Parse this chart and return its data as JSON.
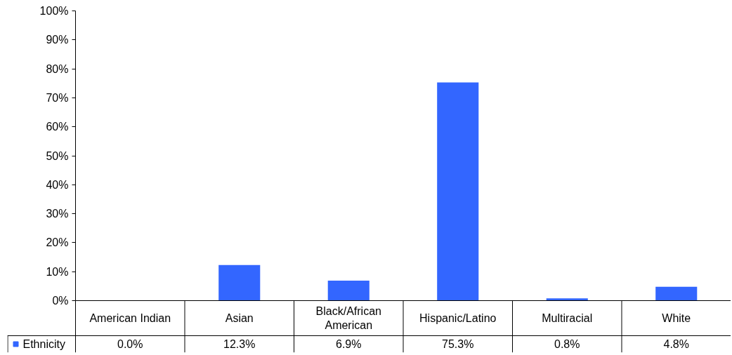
{
  "chart_data": {
    "type": "bar",
    "categories": [
      "American Indian",
      "Asian",
      "Black/African American",
      "Hispanic/Latino",
      "Multiracial",
      "White"
    ],
    "series": [
      {
        "name": "Ethnicity",
        "color": "#3366ff",
        "values": [
          0.0,
          12.3,
          6.9,
          75.3,
          0.8,
          4.8
        ],
        "value_labels": [
          "0.0%",
          "12.3%",
          "6.9%",
          "75.3%",
          "0.8%",
          "4.8%"
        ]
      }
    ],
    "ylim": [
      0,
      100
    ],
    "yticks": [
      {
        "value": 0,
        "label": "0%"
      },
      {
        "value": 10,
        "label": "10%"
      },
      {
        "value": 20,
        "label": "20%"
      },
      {
        "value": 30,
        "label": "30%"
      },
      {
        "value": 40,
        "label": "40%"
      },
      {
        "value": 50,
        "label": "50%"
      },
      {
        "value": 60,
        "label": "60%"
      },
      {
        "value": 70,
        "label": "70%"
      },
      {
        "value": 80,
        "label": "80%"
      },
      {
        "value": 90,
        "label": "90%"
      },
      {
        "value": 100,
        "label": "100%"
      }
    ],
    "grid": false,
    "legend": "bottom"
  }
}
